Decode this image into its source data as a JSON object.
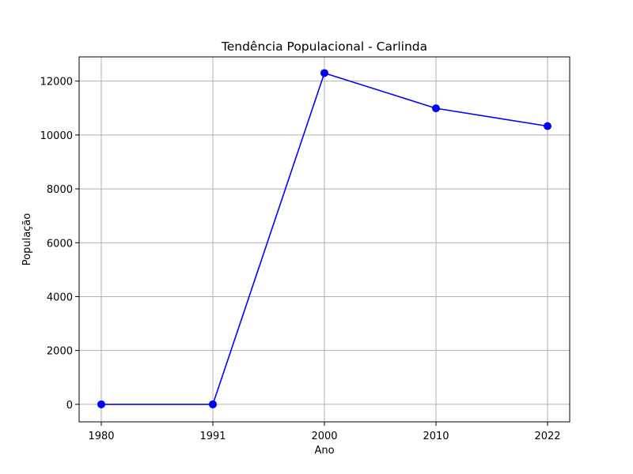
{
  "chart_data": {
    "type": "line",
    "title": "Tendência Populacional - Carlinda",
    "xlabel": "Ano",
    "ylabel": "População",
    "categories": [
      "1980",
      "1991",
      "2000",
      "2010",
      "2022"
    ],
    "series": [
      {
        "values": [
          0,
          0,
          12300,
          10990,
          10330
        ],
        "color": "#0000ff",
        "marker": "circle"
      }
    ],
    "ylim": [
      -650,
      12900
    ],
    "yticks": [
      0,
      2000,
      4000,
      6000,
      8000,
      10000,
      12000
    ],
    "grid": true,
    "colors": {
      "line": "#0000ff",
      "grid": "#b0b0b0",
      "axes": "#000000"
    }
  }
}
